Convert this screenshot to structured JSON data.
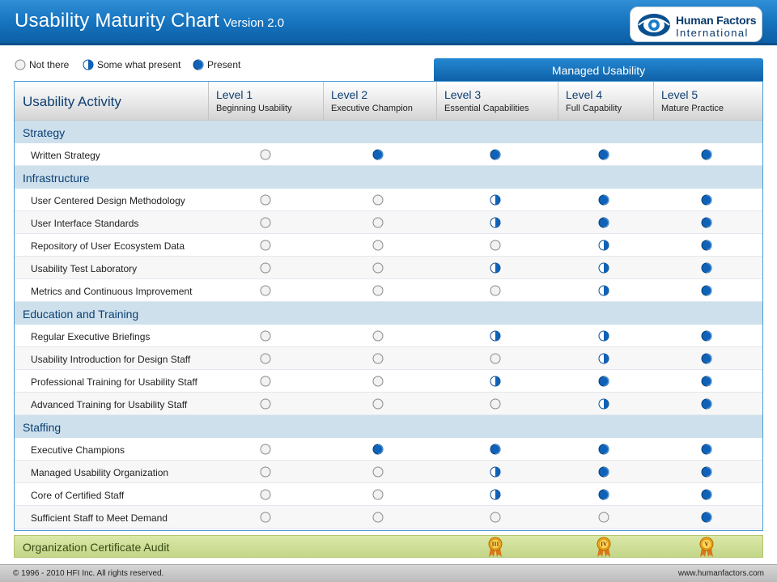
{
  "header": {
    "title": "Usability Maturity Chart",
    "version": "Version 2.0",
    "logo_line1": "Human Factors",
    "logo_line2": "International"
  },
  "legend": [
    {
      "label": "Not there",
      "state": "none"
    },
    {
      "label": "Some what present",
      "state": "half"
    },
    {
      "label": "Present",
      "state": "full"
    }
  ],
  "managed_label": "Managed Usability",
  "table": {
    "activity_header": "Usability Activity",
    "levels": [
      {
        "name": "Level 1",
        "subtitle": "Beginning Usability"
      },
      {
        "name": "Level 2",
        "subtitle": "Executive Champion"
      },
      {
        "name": "Level 3",
        "subtitle": "Essential Capabilities"
      },
      {
        "name": "Level 4",
        "subtitle": "Full Capability"
      },
      {
        "name": "Level 5",
        "subtitle": "Mature Practice"
      }
    ],
    "sections": [
      {
        "title": "Strategy",
        "rows": [
          {
            "label": "Written Strategy",
            "marks": [
              "none",
              "full",
              "full",
              "full",
              "full"
            ]
          }
        ]
      },
      {
        "title": "Infrastructure",
        "rows": [
          {
            "label": "User Centered Design Methodology",
            "marks": [
              "none",
              "none",
              "half",
              "full",
              "full"
            ]
          },
          {
            "label": "User Interface Standards",
            "marks": [
              "none",
              "none",
              "half",
              "full",
              "full"
            ]
          },
          {
            "label": "Repository of User Ecosystem Data",
            "marks": [
              "none",
              "none",
              "none",
              "half",
              "full"
            ]
          },
          {
            "label": "Usability Test Laboratory",
            "marks": [
              "none",
              "none",
              "half",
              "half",
              "full"
            ]
          },
          {
            "label": "Metrics and Continuous Improvement",
            "marks": [
              "none",
              "none",
              "none",
              "half",
              "full"
            ]
          }
        ]
      },
      {
        "title": "Education and Training",
        "rows": [
          {
            "label": "Regular Executive Briefings",
            "marks": [
              "none",
              "none",
              "half",
              "half",
              "full"
            ]
          },
          {
            "label": "Usability Introduction for Design Staff",
            "marks": [
              "none",
              "none",
              "none",
              "half",
              "full"
            ]
          },
          {
            "label": "Professional Training for Usability Staff",
            "marks": [
              "none",
              "none",
              "half",
              "full",
              "full"
            ]
          },
          {
            "label": "Advanced Training for Usability Staff",
            "marks": [
              "none",
              "none",
              "none",
              "half",
              "full"
            ]
          }
        ]
      },
      {
        "title": "Staffing",
        "rows": [
          {
            "label": "Executive Champions",
            "marks": [
              "none",
              "full",
              "full",
              "full",
              "full"
            ]
          },
          {
            "label": "Managed Usability Organization",
            "marks": [
              "none",
              "none",
              "half",
              "full",
              "full"
            ]
          },
          {
            "label": "Core of Certified Staff",
            "marks": [
              "none",
              "none",
              "half",
              "full",
              "full"
            ]
          },
          {
            "label": "Sufficient Staff to Meet Demand",
            "marks": [
              "none",
              "none",
              "none",
              "none",
              "full"
            ]
          }
        ]
      }
    ]
  },
  "audit": {
    "label": "Organization Certificate Audit",
    "medals": [
      {
        "level_index": 2,
        "numeral": "III"
      },
      {
        "level_index": 3,
        "numeral": "IV"
      },
      {
        "level_index": 4,
        "numeral": "V"
      }
    ]
  },
  "footer": {
    "copyright": "© 1996 - 2010 HFI Inc. All rights reserved.",
    "url": "www.humanfactors.com"
  },
  "colors": {
    "header_blue": "#1572bd",
    "present_blue": "#0f62b8",
    "section_band": "#cde0ec",
    "audit_green": "#c8da8e",
    "medal_gold": "#f0a818"
  }
}
